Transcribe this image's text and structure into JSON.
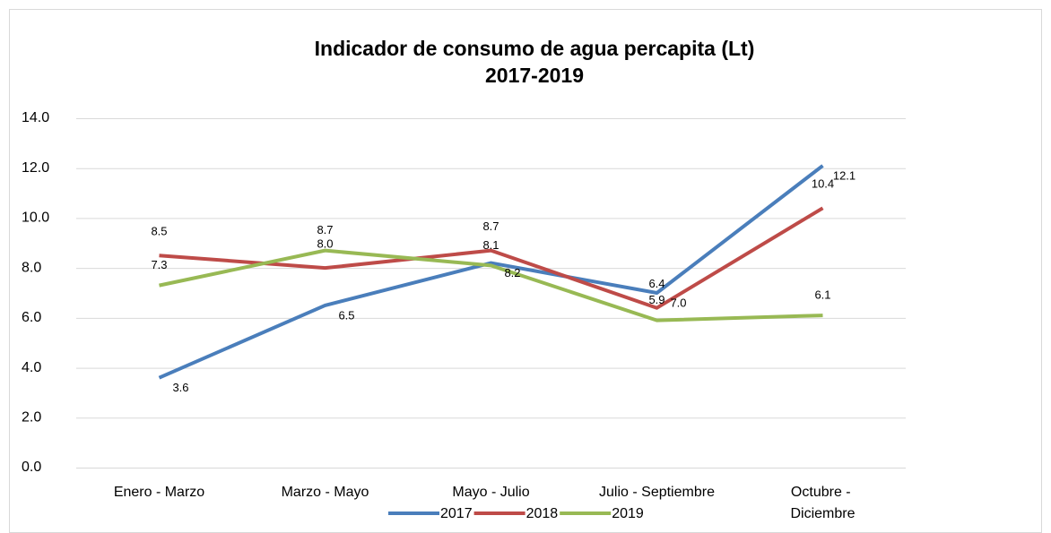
{
  "chart_data": {
    "type": "line",
    "title": "Indicador de consumo de agua percapita (Lt)",
    "subtitle": "2017-2019",
    "categories": [
      "Enero - Marzo",
      "Marzo - Mayo",
      "Mayo - Julio",
      "Julio - Septiembre",
      "Octubre - Diciembre"
    ],
    "series": [
      {
        "name": "2017",
        "color": "#4a7ebb",
        "values": [
          3.6,
          6.5,
          8.2,
          7.0,
          12.1
        ],
        "value_labels": [
          "3.6",
          "6.5",
          "8.2",
          "7.0",
          "12.1"
        ]
      },
      {
        "name": "2018",
        "color": "#be4b48",
        "values": [
          8.5,
          8.0,
          8.7,
          6.4,
          10.4
        ],
        "value_labels": [
          "8.5",
          "8.0",
          "8.7",
          "6.4",
          "10.4"
        ]
      },
      {
        "name": "2019",
        "color": "#98b954",
        "values": [
          7.3,
          8.7,
          8.1,
          5.9,
          6.1
        ],
        "value_labels": [
          "7.3",
          "8.7",
          "8.1",
          "5.9",
          "6.1"
        ]
      }
    ],
    "ylim": [
      0,
      14
    ],
    "yticks": [
      {
        "value": 0,
        "label": "0.0"
      },
      {
        "value": 2,
        "label": "2.0"
      },
      {
        "value": 4,
        "label": "4.0"
      },
      {
        "value": 6,
        "label": "6.0"
      },
      {
        "value": 8,
        "label": "8.0"
      },
      {
        "value": 10,
        "label": "10.0"
      },
      {
        "value": 12,
        "label": "12.0"
      },
      {
        "value": 14,
        "label": "14.0"
      }
    ],
    "grid": true,
    "legend": "bottom"
  }
}
